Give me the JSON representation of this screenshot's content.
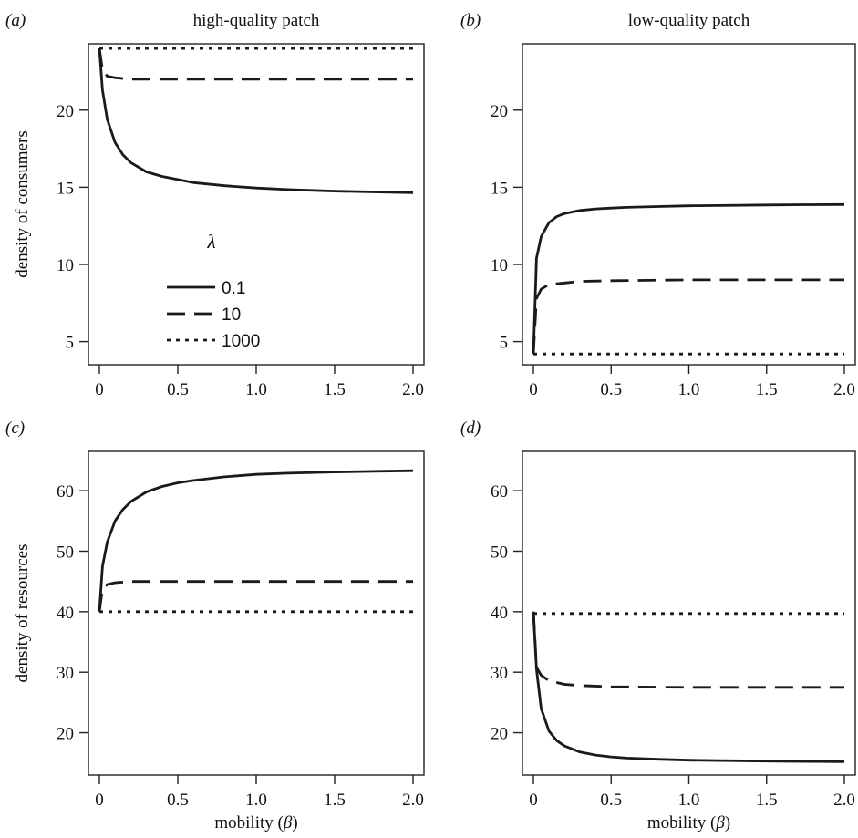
{
  "chart_data": [
    {
      "id": "a",
      "type": "line",
      "panel_label": "(a)",
      "title": "high-quality patch",
      "xlabel": "",
      "ylabel": "density of consumers",
      "xlim": [
        0,
        2.0
      ],
      "ylim": [
        3.5,
        24.3
      ],
      "x_ticks": [
        0,
        0.5,
        1.0,
        1.5,
        2.0
      ],
      "x_tick_labels": [
        "0",
        "0.5",
        "1.0",
        "1.5",
        "2.0"
      ],
      "y_ticks": [
        5,
        10,
        15,
        20
      ],
      "y_tick_labels": [
        "5",
        "10",
        "15",
        "20"
      ],
      "legend": {
        "title": "λ",
        "position": "center-left",
        "entries": [
          "0.1",
          "10",
          "1000"
        ]
      },
      "series": [
        {
          "name": "0.1",
          "style": "solid",
          "x": [
            0,
            0.02,
            0.05,
            0.1,
            0.15,
            0.2,
            0.3,
            0.4,
            0.5,
            0.6,
            0.8,
            1.0,
            1.2,
            1.5,
            1.75,
            2.0
          ],
          "y": [
            24,
            21.3,
            19.4,
            17.9,
            17.1,
            16.6,
            16.0,
            15.7,
            15.5,
            15.3,
            15.1,
            14.95,
            14.85,
            14.75,
            14.7,
            14.65
          ]
        },
        {
          "name": "10",
          "style": "dashed",
          "x": [
            0,
            0.02,
            0.05,
            0.1,
            0.2,
            0.3,
            0.5,
            1.0,
            1.5,
            2.0
          ],
          "y": [
            24,
            22.6,
            22.2,
            22.1,
            22.0,
            22.0,
            22.0,
            22.0,
            22.0,
            22.0
          ]
        },
        {
          "name": "1000",
          "style": "dotted",
          "x": [
            0,
            0.5,
            1.0,
            1.5,
            2.0
          ],
          "y": [
            24,
            24,
            24,
            24,
            24
          ]
        }
      ]
    },
    {
      "id": "b",
      "type": "line",
      "panel_label": "(b)",
      "title": "low-quality patch",
      "xlabel": "",
      "ylabel": "",
      "xlim": [
        0,
        2.0
      ],
      "ylim": [
        3.5,
        24.3
      ],
      "x_ticks": [
        0,
        0.5,
        1.0,
        1.5,
        2.0
      ],
      "x_tick_labels": [
        "0",
        "0.5",
        "1.0",
        "1.5",
        "2.0"
      ],
      "y_ticks": [
        5,
        10,
        15,
        20
      ],
      "y_tick_labels": [
        "5",
        "10",
        "15",
        "20"
      ],
      "series": [
        {
          "name": "0.1",
          "style": "solid",
          "x": [
            0,
            0.02,
            0.05,
            0.1,
            0.15,
            0.2,
            0.3,
            0.4,
            0.5,
            0.6,
            0.8,
            1.0,
            1.2,
            1.5,
            1.75,
            2.0
          ],
          "y": [
            4.2,
            10.4,
            11.8,
            12.7,
            13.1,
            13.3,
            13.5,
            13.6,
            13.65,
            13.7,
            13.75,
            13.8,
            13.82,
            13.85,
            13.87,
            13.88
          ]
        },
        {
          "name": "10",
          "style": "dashed",
          "x": [
            0,
            0.02,
            0.05,
            0.1,
            0.2,
            0.3,
            0.5,
            1.0,
            1.5,
            2.0
          ],
          "y": [
            4.2,
            7.8,
            8.4,
            8.7,
            8.8,
            8.9,
            8.95,
            9.0,
            9.0,
            9.0
          ]
        },
        {
          "name": "1000",
          "style": "dotted",
          "x": [
            0,
            0.5,
            1.0,
            1.5,
            2.0
          ],
          "y": [
            4.2,
            4.2,
            4.2,
            4.2,
            4.2
          ]
        }
      ]
    },
    {
      "id": "c",
      "type": "line",
      "panel_label": "(c)",
      "title": "",
      "xlabel": "mobility (β)",
      "ylabel": "density of resources",
      "xlim": [
        0,
        2.0
      ],
      "ylim": [
        13,
        66.5
      ],
      "x_ticks": [
        0,
        0.5,
        1.0,
        1.5,
        2.0
      ],
      "x_tick_labels": [
        "0",
        "0.5",
        "1.0",
        "1.5",
        "2.0"
      ],
      "y_ticks": [
        20,
        30,
        40,
        50,
        60
      ],
      "y_tick_labels": [
        "20",
        "30",
        "40",
        "50",
        "60"
      ],
      "series": [
        {
          "name": "0.1",
          "style": "solid",
          "x": [
            0,
            0.02,
            0.05,
            0.1,
            0.15,
            0.2,
            0.3,
            0.4,
            0.5,
            0.6,
            0.8,
            1.0,
            1.2,
            1.5,
            1.75,
            2.0
          ],
          "y": [
            40,
            47.5,
            51.5,
            55.0,
            56.9,
            58.2,
            59.8,
            60.7,
            61.3,
            61.7,
            62.3,
            62.7,
            62.9,
            63.1,
            63.2,
            63.3
          ]
        },
        {
          "name": "10",
          "style": "dashed",
          "x": [
            0,
            0.02,
            0.05,
            0.1,
            0.2,
            0.3,
            0.5,
            1.0,
            1.5,
            2.0
          ],
          "y": [
            40,
            43.8,
            44.5,
            44.8,
            45.0,
            45.0,
            45.0,
            45.0,
            45.0,
            45.0
          ]
        },
        {
          "name": "1000",
          "style": "dotted",
          "x": [
            0,
            0.5,
            1.0,
            1.5,
            2.0
          ],
          "y": [
            40,
            40,
            40,
            40,
            40
          ]
        }
      ]
    },
    {
      "id": "d",
      "type": "line",
      "panel_label": "(d)",
      "title": "",
      "xlabel": "mobility (β)",
      "ylabel": "",
      "xlim": [
        0,
        2.0
      ],
      "ylim": [
        13,
        66.5
      ],
      "x_ticks": [
        0,
        0.5,
        1.0,
        1.5,
        2.0
      ],
      "x_tick_labels": [
        "0",
        "0.5",
        "1.0",
        "1.5",
        "2.0"
      ],
      "y_ticks": [
        20,
        30,
        40,
        50,
        60
      ],
      "y_tick_labels": [
        "20",
        "30",
        "40",
        "50",
        "60"
      ],
      "series": [
        {
          "name": "0.1",
          "style": "solid",
          "x": [
            0,
            0.02,
            0.05,
            0.1,
            0.15,
            0.2,
            0.3,
            0.4,
            0.5,
            0.6,
            0.8,
            1.0,
            1.2,
            1.5,
            1.75,
            2.0
          ],
          "y": [
            40,
            30.5,
            24.0,
            20.3,
            18.7,
            17.8,
            16.8,
            16.3,
            16.0,
            15.8,
            15.6,
            15.45,
            15.4,
            15.3,
            15.25,
            15.2
          ]
        },
        {
          "name": "10",
          "style": "dashed",
          "x": [
            0,
            0.02,
            0.05,
            0.1,
            0.2,
            0.3,
            0.5,
            1.0,
            1.5,
            2.0
          ],
          "y": [
            40,
            30.8,
            29.5,
            28.6,
            28.0,
            27.8,
            27.6,
            27.5,
            27.5,
            27.5
          ]
        },
        {
          "name": "1000",
          "style": "dotted",
          "x": [
            0,
            0.5,
            1.0,
            1.5,
            2.0
          ],
          "y": [
            39.7,
            39.7,
            39.7,
            39.7,
            39.7
          ]
        }
      ]
    }
  ]
}
